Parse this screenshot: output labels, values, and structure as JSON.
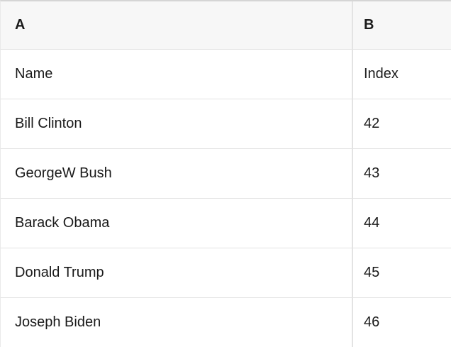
{
  "table": {
    "columns": [
      {
        "id": "A",
        "header": "A"
      },
      {
        "id": "B",
        "header": "B"
      }
    ],
    "rows": [
      [
        "Name",
        "Index"
      ],
      [
        "Bill Clinton",
        "42"
      ],
      [
        "GeorgeW Bush",
        "43"
      ],
      [
        "Barack Obama",
        "44"
      ],
      [
        "Donald Trump",
        "45"
      ],
      [
        "Joseph Biden",
        "46"
      ]
    ],
    "colors": {
      "header_bg": "#f7f7f7",
      "top_border": "#d5d5d5",
      "inner_border": "#e3e3e3",
      "edge_border": "#e9e9e9",
      "text": "#1a1a1a"
    }
  }
}
